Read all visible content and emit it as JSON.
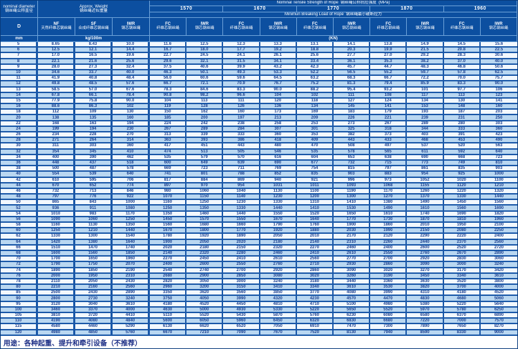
{
  "header": {
    "diameter": {
      "en": "nominal diameter",
      "zh": "钢丝绳公称直径",
      "symbol": "D",
      "unit": "mm"
    },
    "weight": {
      "en": "Approx. Weight",
      "zh": "钢丝绳近似重量",
      "unit": "kg/100m",
      "cols": [
        {
          "abbr": "NF",
          "zh": "天然纤维芯钢丝绳"
        },
        {
          "abbr": "SF",
          "zh": "合成纤维芯钢丝绳"
        },
        {
          "abbr": "IWR",
          "zh": "钢芯钢丝绳"
        }
      ]
    },
    "tensile": {
      "en": "Nominal Tensile Strength of Rope",
      "zh": "钢丝绳公称抗拉强度",
      "unit": "(MPa)",
      "values": [
        "1570",
        "1670",
        "1770",
        "1870",
        "1960"
      ]
    },
    "breaking": {
      "en": "Minimun Breaking Load of Rope",
      "zh": "钢丝绳最小破断拉力",
      "unit": "(KN)",
      "cols": [
        {
          "abbr": "FC",
          "zh": "纤维芯钢丝绳"
        },
        {
          "abbr": "IWR",
          "zh": "钢芯钢丝绳"
        }
      ]
    }
  },
  "table": {
    "columns": [
      "D mm",
      "NF kg/100m",
      "SF kg/100m",
      "IWR kg/100m",
      "1570 FC",
      "1570 IWR",
      "1670 FC",
      "1670 IWR",
      "1770 FC",
      "1770 IWR",
      "1870 FC",
      "1870 IWR",
      "1960 FC",
      "1960 IWR"
    ],
    "rows": [
      [
        "5",
        "8.65",
        "8.43",
        "10.0",
        "11.6",
        "12.5",
        "12.3",
        "13.3",
        "13.1",
        "14.1",
        "13.8",
        "14.9",
        "14.5",
        "15.6"
      ],
      [
        "6",
        "12.5",
        "12.1",
        "14.4",
        "16.7",
        "18.0",
        "17.7",
        "19.2",
        "18.8",
        "20.3",
        "19.9",
        "21.5",
        "20.8",
        "22.5"
      ],
      [
        "7",
        "17.0",
        "16.5",
        "19.6",
        "22.7",
        "24.5",
        "24.1",
        "26.1",
        "25.6",
        "27.7",
        "27.0",
        "29.2",
        "28.3",
        "30.6"
      ],
      [
        "8",
        "22.1",
        "21.6",
        "25.6",
        "29.6",
        "32.1",
        "31.5",
        "34.1",
        "33.4",
        "36.1",
        "35.3",
        "38.2",
        "37.0",
        "40.0"
      ],
      [
        "9",
        "28.0",
        "27.3",
        "32.4",
        "37.5",
        "40.6",
        "39.9",
        "43.2",
        "42.3",
        "45.7",
        "44.7",
        "48.3",
        "46.8",
        "50.6"
      ],
      [
        "10",
        "34.6",
        "33.7",
        "40.0",
        "46.3",
        "50.1",
        "49.3",
        "53.3",
        "52.2",
        "56.5",
        "55.2",
        "59.7",
        "57.8",
        "62.5"
      ],
      [
        "11",
        "41.9",
        "40.8",
        "48.4",
        "56.0",
        "60.6",
        "59.6",
        "64.5",
        "63.2",
        "68.3",
        "66.7",
        "72.2",
        "70.0",
        "75.7"
      ],
      [
        "12",
        "49.8",
        "48.5",
        "57.6",
        "66.7",
        "72.1",
        "70.9",
        "76.7",
        "75.2",
        "81.3",
        "79.4",
        "85.9",
        "83.3",
        "90.0"
      ],
      [
        "13",
        "58.5",
        "57.0",
        "67.6",
        "78.3",
        "84.6",
        "83.3",
        "90.0",
        "88.2",
        "95.4",
        "93.2",
        "101",
        "97.7",
        "106"
      ],
      [
        "14",
        "67.8",
        "66.1",
        "78.4",
        "90.8",
        "98.2",
        "96.6",
        "104",
        "102",
        "111",
        "108",
        "117",
        "113",
        "123"
      ],
      [
        "15",
        "77.9",
        "75.8",
        "90.0",
        "104",
        "113",
        "111",
        "120",
        "118",
        "127",
        "124",
        "134",
        "130",
        "141"
      ],
      [
        "16",
        "88.6",
        "86.3",
        "102",
        "119",
        "128",
        "126",
        "136",
        "134",
        "145",
        "141",
        "153",
        "148",
        "160"
      ],
      [
        "18",
        "112",
        "109",
        "130",
        "150",
        "162",
        "160",
        "173",
        "169",
        "183",
        "179",
        "193",
        "187",
        "203"
      ],
      [
        "20",
        "138",
        "135",
        "160",
        "185",
        "200",
        "197",
        "213",
        "209",
        "226",
        "221",
        "239",
        "231",
        "250"
      ],
      [
        "22",
        "168",
        "163",
        "194",
        "224",
        "242",
        "238",
        "258",
        "253",
        "273",
        "267",
        "289",
        "280",
        "303"
      ],
      [
        "24",
        "199",
        "194",
        "230",
        "267",
        "289",
        "284",
        "307",
        "301",
        "325",
        "318",
        "344",
        "333",
        "360"
      ],
      [
        "26",
        "234",
        "228",
        "270",
        "313",
        "339",
        "333",
        "360",
        "353",
        "382",
        "373",
        "403",
        "391",
        "423"
      ],
      [
        "28",
        "271",
        "264",
        "314",
        "363",
        "393",
        "386",
        "418",
        "409",
        "443",
        "433",
        "468",
        "453",
        "490"
      ],
      [
        "30",
        "311",
        "303",
        "360",
        "417",
        "451",
        "443",
        "480",
        "470",
        "508",
        "497",
        "537",
        "520",
        "563"
      ],
      [
        "32",
        "354",
        "345",
        "410",
        "474",
        "513",
        "505",
        "546",
        "535",
        "578",
        "565",
        "611",
        "592",
        "640"
      ],
      [
        "34",
        "400",
        "390",
        "462",
        "535",
        "579",
        "570",
        "616",
        "604",
        "653",
        "638",
        "690",
        "668",
        "723"
      ],
      [
        "36",
        "448",
        "437",
        "518",
        "600",
        "649",
        "639",
        "690",
        "677",
        "732",
        "715",
        "773",
        "749",
        "810"
      ],
      [
        "38",
        "500",
        "487",
        "578",
        "669",
        "723",
        "711",
        "769",
        "754",
        "815",
        "797",
        "861",
        "835",
        "903"
      ],
      [
        "40",
        "554",
        "539",
        "640",
        "741",
        "801",
        "788",
        "852",
        "835",
        "903",
        "883",
        "954",
        "925",
        "1000"
      ],
      [
        "42",
        "610",
        "595",
        "706",
        "817",
        "884",
        "869",
        "940",
        "921",
        "996",
        "973",
        "1052",
        "1020",
        "1100"
      ],
      [
        "44",
        "670",
        "652",
        "774",
        "897",
        "970",
        "954",
        "1031",
        "1011",
        "1093",
        "1068",
        "1155",
        "1120",
        "1210"
      ],
      [
        "46",
        "732",
        "713",
        "846",
        "980",
        "1060",
        "1040",
        "1130",
        "1100",
        "1190",
        "1170",
        "1260",
        "1220",
        "1320"
      ],
      [
        "48",
        "797",
        "776",
        "922",
        "1070",
        "1150",
        "1140",
        "1230",
        "1200",
        "1300",
        "1270",
        "1370",
        "1330",
        "1440"
      ],
      [
        "50",
        "865",
        "843",
        "1000",
        "1160",
        "1250",
        "1230",
        "1330",
        "1310",
        "1410",
        "1380",
        "1490",
        "1450",
        "1560"
      ],
      [
        "52",
        "936",
        "911",
        "1080",
        "1250",
        "1350",
        "1330",
        "1440",
        "1410",
        "1530",
        "1490",
        "1610",
        "1560",
        "1690"
      ],
      [
        "54",
        "1010",
        "983",
        "1170",
        "1350",
        "1460",
        "1440",
        "1550",
        "1520",
        "1650",
        "1610",
        "1740",
        "1690",
        "1820"
      ],
      [
        "56",
        "1090",
        "1060",
        "1250",
        "1450",
        "1570",
        "1550",
        "1670",
        "1640",
        "1770",
        "1730",
        "1870",
        "1810",
        "1960"
      ],
      [
        "58",
        "1160",
        "1130",
        "1350",
        "1560",
        "1680",
        "1660",
        "1790",
        "1760",
        "1900",
        "1860",
        "2010",
        "1950",
        "2100"
      ],
      [
        "60",
        "1250",
        "1210",
        "1440",
        "1670",
        "1800",
        "1770",
        "1920",
        "1880",
        "2030",
        "1990",
        "2150",
        "2080",
        "2250"
      ],
      [
        "62",
        "1330",
        "1300",
        "1540",
        "1780",
        "1920",
        "1890",
        "2050",
        "2010",
        "2170",
        "2120",
        "2290",
        "2220",
        "2400"
      ],
      [
        "64",
        "1420",
        "1380",
        "1640",
        "1900",
        "2050",
        "2020",
        "2180",
        "2140",
        "2310",
        "2260",
        "2440",
        "2370",
        "2560"
      ],
      [
        "66",
        "1510",
        "1470",
        "1740",
        "2020",
        "2180",
        "2150",
        "2320",
        "2270",
        "2460",
        "2400",
        "2600",
        "2520",
        "2720"
      ],
      [
        "68",
        "1600",
        "1560",
        "1850",
        "2140",
        "2320",
        "2280",
        "2460",
        "2410",
        "2610",
        "2550",
        "2760",
        "2670",
        "2890"
      ],
      [
        "70",
        "1700",
        "1650",
        "1960",
        "2270",
        "2450",
        "2410",
        "2610",
        "2560",
        "2770",
        "2700",
        "2920",
        "2830",
        "3060"
      ],
      [
        "72",
        "1790",
        "1750",
        "2070",
        "2400",
        "2600",
        "2550",
        "2760",
        "2710",
        "2930",
        "2860",
        "3090",
        "3000",
        "3240"
      ],
      [
        "74",
        "1890",
        "1850",
        "2190",
        "2540",
        "2740",
        "2700",
        "2920",
        "2860",
        "3090",
        "3020",
        "3270",
        "3170",
        "3420"
      ],
      [
        "76",
        "2000",
        "1950",
        "2310",
        "2680",
        "2900",
        "2850",
        "3080",
        "3020",
        "3260",
        "3190",
        "3450",
        "3340",
        "3610"
      ],
      [
        "78",
        "2110",
        "2050",
        "2430",
        "2820",
        "3050",
        "3000",
        "3240",
        "3180",
        "3440",
        "3360",
        "3630",
        "3520",
        "3800"
      ],
      [
        "80",
        "2210",
        "2160",
        "2560",
        "2960",
        "3200",
        "3150",
        "3410",
        "3340",
        "3610",
        "3530",
        "3820",
        "3700",
        "4000"
      ],
      [
        "85",
        "2500",
        "2430",
        "2890",
        "3350",
        "3620",
        "3560",
        "3850",
        "3770",
        "4080",
        "3990",
        "4310",
        "4180",
        "4520"
      ],
      [
        "90",
        "2800",
        "2730",
        "3240",
        "3750",
        "4050",
        "3990",
        "4320",
        "4230",
        "4570",
        "4470",
        "4830",
        "4680",
        "5060"
      ],
      [
        "95",
        "3120",
        "3040",
        "3610",
        "4180",
        "4520",
        "4450",
        "4810",
        "4710",
        "5100",
        "4980",
        "5380",
        "5220",
        "5640"
      ],
      [
        "100",
        "3460",
        "3370",
        "4000",
        "4630",
        "5000",
        "4930",
        "5330",
        "5220",
        "5650",
        "5520",
        "5970",
        "5780",
        "6250"
      ],
      [
        "105",
        "3810",
        "3720",
        "4410",
        "5110",
        "5520",
        "5430",
        "5870",
        "5760",
        "6230",
        "6080",
        "6580",
        "6370",
        "6890"
      ],
      [
        "110",
        "4190",
        "4080",
        "4840",
        "5600",
        "6050",
        "5960",
        "6450",
        "6320",
        "6830",
        "6680",
        "7220",
        "7000",
        "7570"
      ],
      [
        "115",
        "4580",
        "4460",
        "5290",
        "6130",
        "6620",
        "6520",
        "7050",
        "6910",
        "7470",
        "7300",
        "7890",
        "7650",
        "8270"
      ],
      [
        "120",
        "4980",
        "4850",
        "5760",
        "6670",
        "7210",
        "7090",
        "7670",
        "7520",
        "8130",
        "7940",
        "8590",
        "8330",
        "9000"
      ]
    ]
  },
  "footer": {
    "usage": "用途：各种起重、提升和牵引设备（不推荐）"
  },
  "colors": {
    "header_bg": "#0c4fa0",
    "grid": "#1a58a8",
    "row_base": "#f2f8fe",
    "row_alt": "#b9d7f1",
    "data_text": "#1b3f8f"
  }
}
